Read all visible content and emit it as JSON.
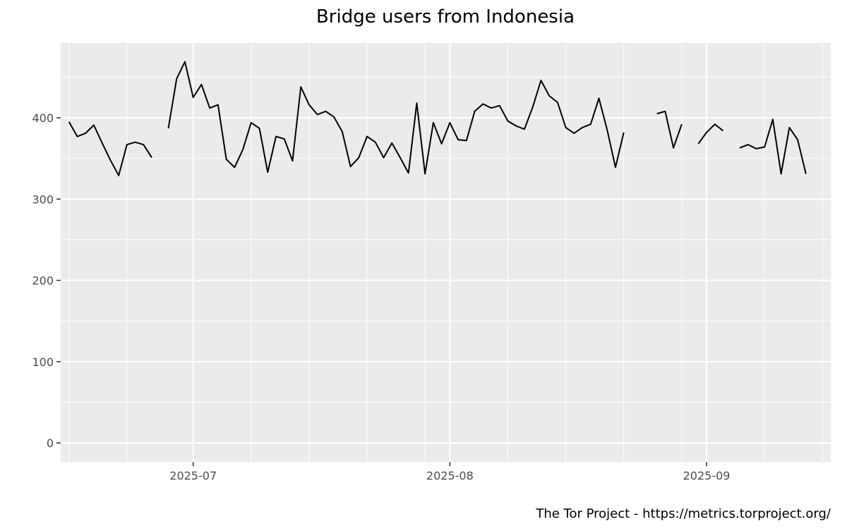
{
  "chart_data": {
    "type": "line",
    "title": "Bridge users from Indonesia",
    "xlabel": "",
    "ylabel": "",
    "caption": "The Tor Project - https://metrics.torproject.org/",
    "ylim": [
      0,
      470
    ],
    "xlim": [
      "2025-06-15",
      "2025-09-16"
    ],
    "x_ticks": [
      {
        "date": "2025-07-01",
        "label": "2025-07"
      },
      {
        "date": "2025-08-01",
        "label": "2025-08"
      },
      {
        "date": "2025-09-01",
        "label": "2025-09"
      }
    ],
    "y_ticks": [
      0,
      100,
      200,
      300,
      400
    ],
    "grid": true,
    "line_color": "#000000",
    "panel_color": "#ebebeb",
    "series": [
      {
        "segments": [
          [
            [
              "2025-06-16",
              395
            ],
            [
              "2025-06-17",
              377
            ],
            [
              "2025-06-18",
              381
            ],
            [
              "2025-06-19",
              391
            ],
            [
              "2025-06-20",
              369
            ],
            [
              "2025-06-21",
              348
            ],
            [
              "2025-06-22",
              329
            ],
            [
              "2025-06-23",
              367
            ],
            [
              "2025-06-24",
              370
            ],
            [
              "2025-06-25",
              367
            ],
            [
              "2025-06-26",
              351
            ]
          ],
          [
            [
              "2025-06-28",
              387
            ],
            [
              "2025-06-29",
              448
            ],
            [
              "2025-06-30",
              469
            ],
            [
              "2025-07-01",
              425
            ],
            [
              "2025-07-02",
              441
            ],
            [
              "2025-07-03",
              412
            ],
            [
              "2025-07-04",
              416
            ],
            [
              "2025-07-05",
              349
            ],
            [
              "2025-07-06",
              339
            ],
            [
              "2025-07-07",
              361
            ],
            [
              "2025-07-08",
              394
            ],
            [
              "2025-07-09",
              387
            ],
            [
              "2025-07-10",
              333
            ],
            [
              "2025-07-11",
              377
            ],
            [
              "2025-07-12",
              374
            ],
            [
              "2025-07-13",
              347
            ],
            [
              "2025-07-14",
              438
            ],
            [
              "2025-07-15",
              416
            ],
            [
              "2025-07-16",
              404
            ],
            [
              "2025-07-17",
              408
            ],
            [
              "2025-07-18",
              401
            ],
            [
              "2025-07-19",
              383
            ],
            [
              "2025-07-20",
              340
            ],
            [
              "2025-07-21",
              351
            ],
            [
              "2025-07-22",
              377
            ],
            [
              "2025-07-23",
              370
            ],
            [
              "2025-07-24",
              351
            ],
            [
              "2025-07-25",
              369
            ],
            [
              "2025-07-26",
              351
            ],
            [
              "2025-07-27",
              332
            ],
            [
              "2025-07-28",
              418
            ],
            [
              "2025-07-29",
              331
            ],
            [
              "2025-07-30",
              394
            ],
            [
              "2025-07-31",
              368
            ],
            [
              "2025-08-01",
              394
            ],
            [
              "2025-08-02",
              373
            ],
            [
              "2025-08-03",
              372
            ],
            [
              "2025-08-04",
              408
            ],
            [
              "2025-08-05",
              417
            ],
            [
              "2025-08-06",
              412
            ],
            [
              "2025-08-07",
              415
            ],
            [
              "2025-08-08",
              396
            ],
            [
              "2025-08-09",
              390
            ],
            [
              "2025-08-10",
              386
            ],
            [
              "2025-08-11",
              413
            ],
            [
              "2025-08-12",
              446
            ],
            [
              "2025-08-13",
              427
            ],
            [
              "2025-08-14",
              419
            ],
            [
              "2025-08-15",
              388
            ],
            [
              "2025-08-16",
              381
            ],
            [
              "2025-08-17",
              388
            ],
            [
              "2025-08-18",
              392
            ],
            [
              "2025-08-19",
              424
            ],
            [
              "2025-08-20",
              385
            ],
            [
              "2025-08-21",
              339
            ],
            [
              "2025-08-22",
              382
            ]
          ],
          [
            [
              "2025-08-26",
              405
            ],
            [
              "2025-08-27",
              408
            ],
            [
              "2025-08-28",
              363
            ],
            [
              "2025-08-29",
              392
            ]
          ],
          [
            [
              "2025-08-31",
              368
            ],
            [
              "2025-09-01",
              382
            ],
            [
              "2025-09-02",
              392
            ],
            [
              "2025-09-03",
              384
            ]
          ],
          [
            [
              "2025-09-05",
              363
            ],
            [
              "2025-09-06",
              367
            ],
            [
              "2025-09-07",
              362
            ],
            [
              "2025-09-08",
              364
            ],
            [
              "2025-09-09",
              398
            ],
            [
              "2025-09-10",
              331
            ],
            [
              "2025-09-11",
              388
            ],
            [
              "2025-09-12",
              373
            ],
            [
              "2025-09-13",
              331
            ]
          ]
        ]
      }
    ]
  }
}
